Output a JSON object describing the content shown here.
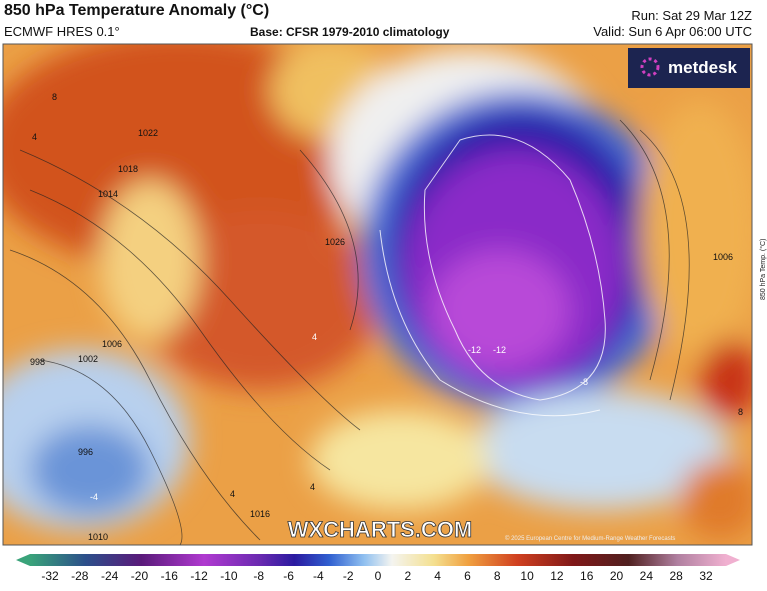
{
  "header": {
    "title": "850 hPa Temperature Anomaly (°C)",
    "model": "ECMWF HRES 0.1°",
    "base": "Base: CFSR 1979-2010 climatology",
    "run": "Run: Sat 29 Mar 12Z",
    "valid": "Valid: Sun 6 Apr 06:00 UTC"
  },
  "logo": "metdesk",
  "watermark": "WXCHARTS.COM",
  "copyright": "© 2025 European Centre for Medium-Range Weather Forecasts",
  "side_label": "850 hPa Temp. (°C)",
  "map": {
    "labels": [
      "8",
      "4",
      "1022",
      "1018",
      "1014",
      "1006",
      "1002",
      "998",
      "996",
      "1026",
      "4",
      "-12",
      "-12",
      "-8",
      "1006",
      "1016",
      "1010",
      "-4",
      "4",
      "4",
      "8"
    ]
  },
  "colorbar": {
    "ticks": [
      -32,
      -28,
      -24,
      -20,
      -16,
      -12,
      -10,
      -8,
      -6,
      -4,
      -2,
      0,
      2,
      4,
      6,
      8,
      10,
      12,
      16,
      20,
      24,
      28,
      32
    ]
  }
}
